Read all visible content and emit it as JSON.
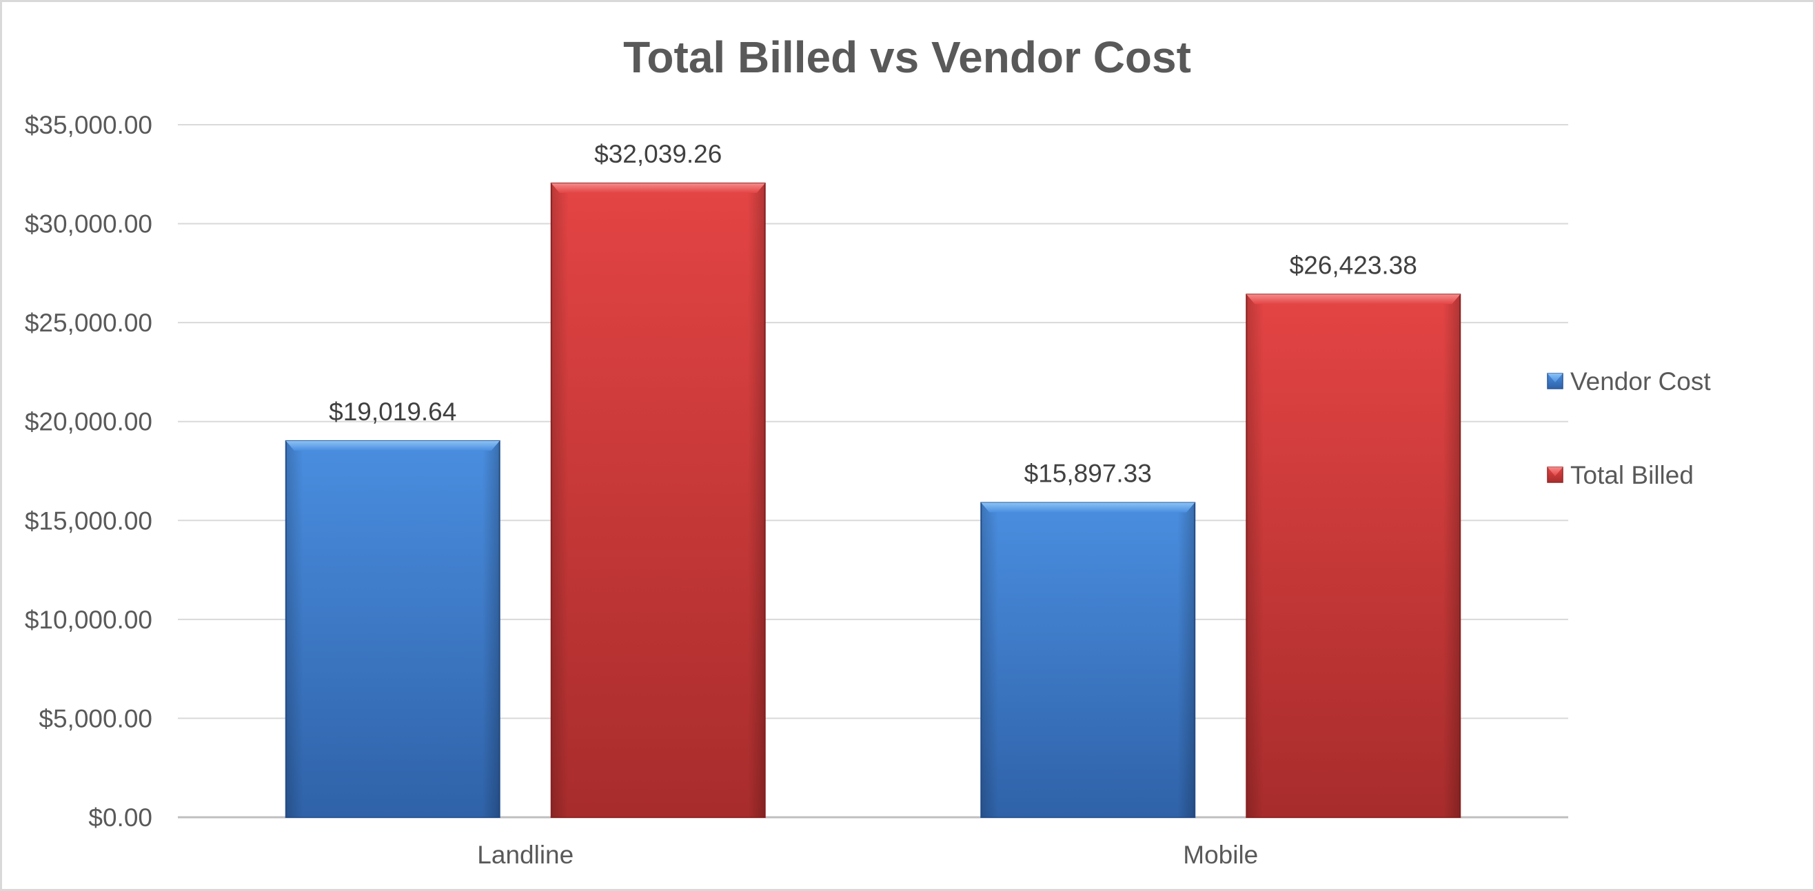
{
  "chart_data": {
    "type": "bar",
    "title": "Total Billed vs Vendor Cost",
    "xlabel": "",
    "ylabel": "",
    "categories": [
      "Landline",
      "Mobile"
    ],
    "series": [
      {
        "name": "Vendor Cost",
        "color": "#3a7acd",
        "values": [
          19019.64,
          15897.33
        ],
        "labels": [
          "$19,019.64",
          "$15,897.33"
        ]
      },
      {
        "name": "Total Billed",
        "color": "#d23c3c",
        "values": [
          32039.26,
          26423.38
        ],
        "labels": [
          "$32,039.26",
          "$26,423.38"
        ]
      }
    ],
    "ylim": [
      0,
      35000
    ],
    "yticks": [
      0,
      5000,
      10000,
      15000,
      20000,
      25000,
      30000,
      35000
    ],
    "ytick_labels": [
      "$0.00",
      "$5,000.00",
      "$10,000.00",
      "$15,000.00",
      "$20,000.00",
      "$25,000.00",
      "$30,000.00",
      "$35,000.00"
    ],
    "grid": true,
    "legend_position": "right"
  }
}
